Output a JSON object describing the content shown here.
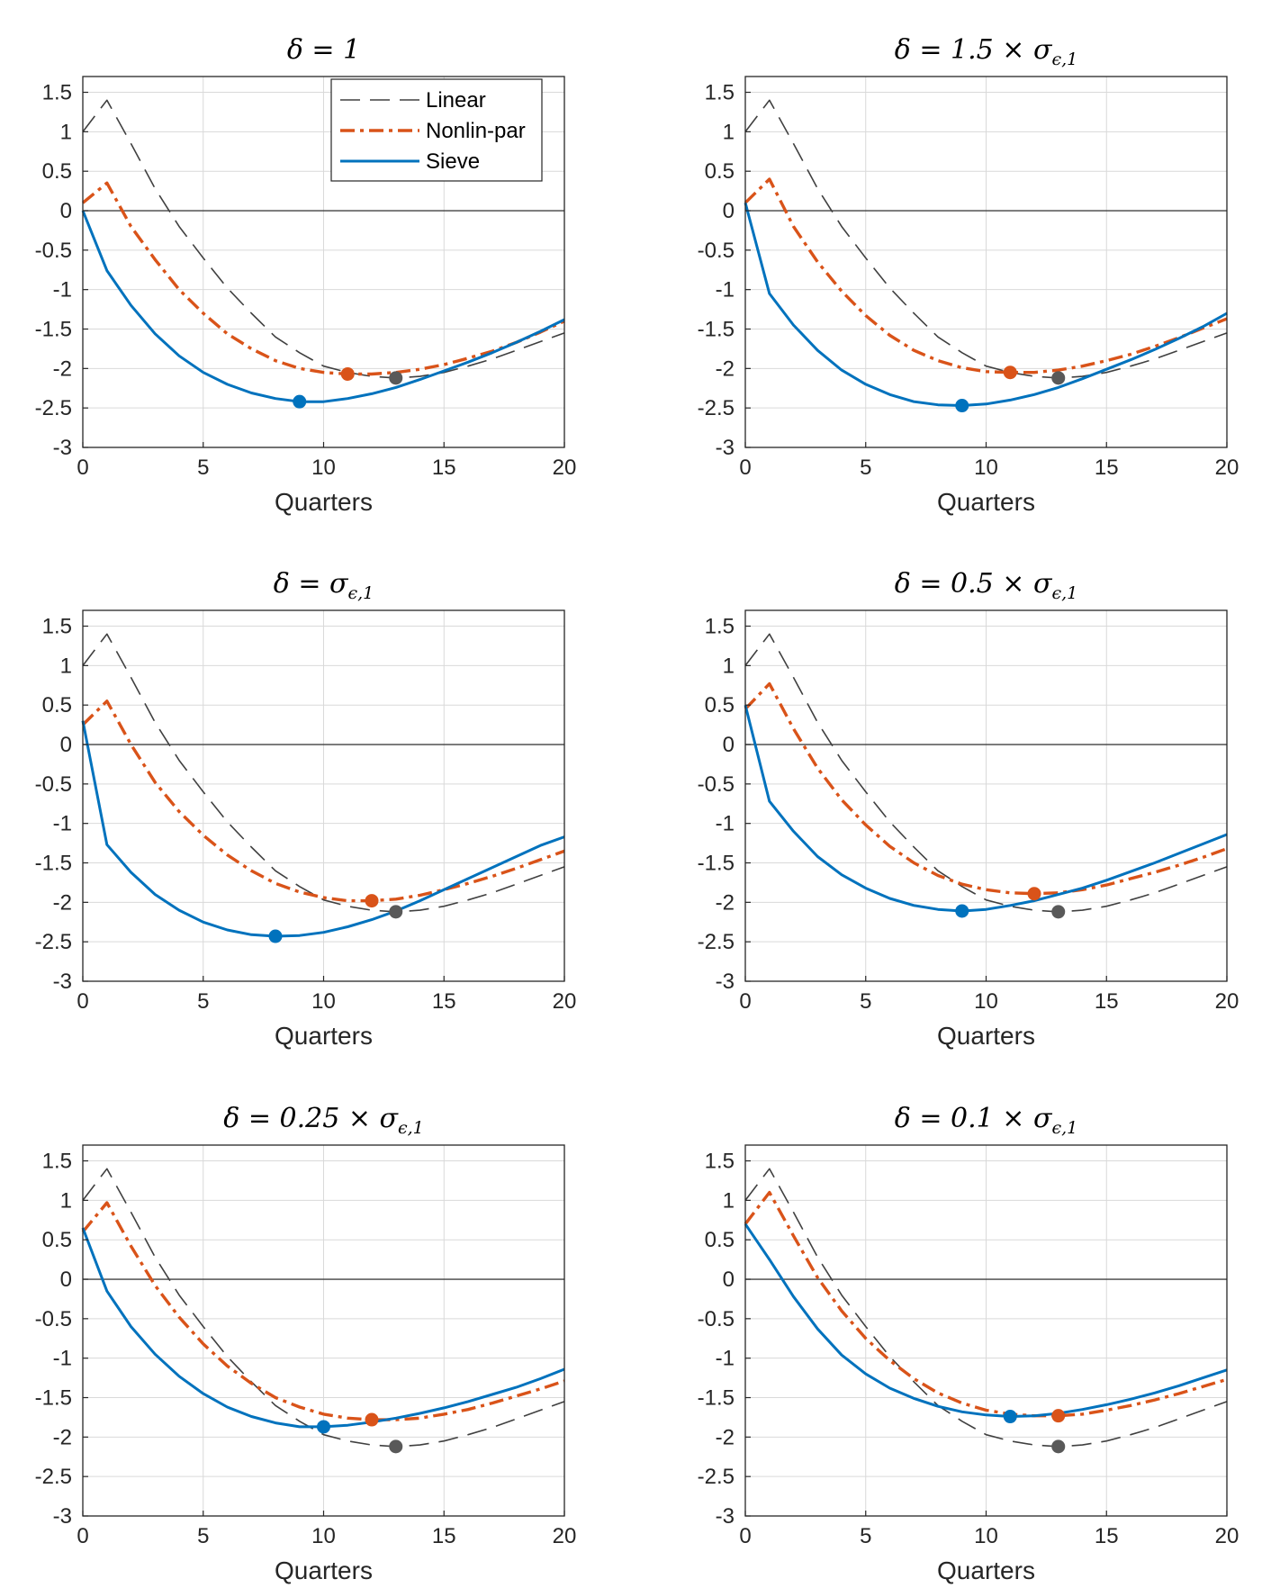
{
  "colors": {
    "linear": "#404040",
    "nonlin": "#d95319",
    "sieve": "#0072bd",
    "linear_marker": "#595959",
    "grid": "#d9d9d9",
    "axis": "#262626",
    "zero_line": "#404040"
  },
  "legend": {
    "entries": [
      "Linear",
      "Nonlin-par",
      "Sieve"
    ],
    "placement": "top-right of first panel"
  },
  "chart_data": [
    {
      "type": "line",
      "title_main": "δ = 1",
      "title_sub": "",
      "xlabel": "Quarters",
      "ylabel": "",
      "xlim": [
        0,
        20
      ],
      "ylim": [
        -3,
        1.7
      ],
      "xticks": [
        "0",
        "5",
        "10",
        "15",
        "20"
      ],
      "yticks": [
        "1.5",
        "1",
        "0.5",
        "0",
        "-0.5",
        "-1",
        "-1.5",
        "-2",
        "-2.5",
        "-3"
      ],
      "grid": true,
      "x": [
        0,
        1,
        2,
        3,
        4,
        5,
        6,
        7,
        8,
        9,
        10,
        11,
        12,
        13,
        14,
        15,
        16,
        17,
        18,
        19,
        20
      ],
      "series": [
        {
          "key": "linear",
          "values": [
            1.0,
            1.4,
            0.85,
            0.28,
            -0.2,
            -0.6,
            -0.98,
            -1.3,
            -1.6,
            -1.8,
            -1.97,
            -2.05,
            -2.1,
            -2.12,
            -2.1,
            -2.05,
            -1.97,
            -1.88,
            -1.77,
            -1.66,
            -1.55
          ],
          "marker": {
            "x": 13,
            "y": -2.12
          }
        },
        {
          "key": "nonlin",
          "values": [
            0.1,
            0.35,
            -0.2,
            -0.62,
            -1.0,
            -1.3,
            -1.56,
            -1.75,
            -1.9,
            -2.0,
            -2.05,
            -2.07,
            -2.07,
            -2.05,
            -2.01,
            -1.95,
            -1.87,
            -1.78,
            -1.67,
            -1.54,
            -1.4
          ],
          "marker": {
            "x": 11,
            "y": -2.07
          }
        },
        {
          "key": "sieve",
          "values": [
            0.0,
            -0.76,
            -1.2,
            -1.56,
            -1.84,
            -2.05,
            -2.2,
            -2.31,
            -2.38,
            -2.42,
            -2.42,
            -2.38,
            -2.32,
            -2.24,
            -2.14,
            -2.03,
            -1.92,
            -1.8,
            -1.67,
            -1.53,
            -1.38
          ],
          "marker": {
            "x": 9,
            "y": -2.42
          }
        }
      ]
    },
    {
      "type": "line",
      "title_main": "δ = 1.5 × σ",
      "title_sub": "ϵ,1",
      "xlabel": "Quarters",
      "ylabel": "",
      "xlim": [
        0,
        20
      ],
      "ylim": [
        -3,
        1.7
      ],
      "xticks": [
        "0",
        "5",
        "10",
        "15",
        "20"
      ],
      "yticks": [
        "1.5",
        "1",
        "0.5",
        "0",
        "-0.5",
        "-1",
        "-1.5",
        "-2",
        "-2.5",
        "-3"
      ],
      "grid": true,
      "x": [
        0,
        1,
        2,
        3,
        4,
        5,
        6,
        7,
        8,
        9,
        10,
        11,
        12,
        13,
        14,
        15,
        16,
        17,
        18,
        19,
        20
      ],
      "series": [
        {
          "key": "linear",
          "values": [
            1.0,
            1.4,
            0.85,
            0.28,
            -0.2,
            -0.6,
            -0.98,
            -1.3,
            -1.6,
            -1.8,
            -1.97,
            -2.05,
            -2.1,
            -2.12,
            -2.1,
            -2.05,
            -1.97,
            -1.88,
            -1.77,
            -1.66,
            -1.55
          ],
          "marker": {
            "x": 13,
            "y": -2.12
          }
        },
        {
          "key": "nonlin",
          "values": [
            0.1,
            0.4,
            -0.2,
            -0.65,
            -1.02,
            -1.33,
            -1.58,
            -1.77,
            -1.9,
            -1.99,
            -2.04,
            -2.05,
            -2.05,
            -2.02,
            -1.97,
            -1.9,
            -1.82,
            -1.72,
            -1.61,
            -1.49,
            -1.37
          ],
          "marker": {
            "x": 11,
            "y": -2.05
          }
        },
        {
          "key": "sieve",
          "values": [
            0.1,
            -1.05,
            -1.45,
            -1.77,
            -2.02,
            -2.2,
            -2.33,
            -2.42,
            -2.46,
            -2.47,
            -2.45,
            -2.4,
            -2.33,
            -2.24,
            -2.13,
            -2.01,
            -1.89,
            -1.76,
            -1.62,
            -1.47,
            -1.3
          ],
          "marker": {
            "x": 9,
            "y": -2.47
          }
        }
      ]
    },
    {
      "type": "line",
      "title_main": "δ = σ",
      "title_sub": "ϵ,1",
      "xlabel": "Quarters",
      "ylabel": "",
      "xlim": [
        0,
        20
      ],
      "ylim": [
        -3,
        1.7
      ],
      "xticks": [
        "0",
        "5",
        "10",
        "15",
        "20"
      ],
      "yticks": [
        "1.5",
        "1",
        "0.5",
        "0",
        "-0.5",
        "-1",
        "-1.5",
        "-2",
        "-2.5",
        "-3"
      ],
      "grid": true,
      "x": [
        0,
        1,
        2,
        3,
        4,
        5,
        6,
        7,
        8,
        9,
        10,
        11,
        12,
        13,
        14,
        15,
        16,
        17,
        18,
        19,
        20
      ],
      "series": [
        {
          "key": "linear",
          "values": [
            1.0,
            1.4,
            0.85,
            0.28,
            -0.2,
            -0.6,
            -0.98,
            -1.3,
            -1.6,
            -1.8,
            -1.97,
            -2.05,
            -2.1,
            -2.12,
            -2.1,
            -2.05,
            -1.97,
            -1.88,
            -1.77,
            -1.66,
            -1.55
          ],
          "marker": {
            "x": 13,
            "y": -2.12
          }
        },
        {
          "key": "nonlin",
          "values": [
            0.25,
            0.55,
            0.0,
            -0.48,
            -0.85,
            -1.15,
            -1.4,
            -1.6,
            -1.76,
            -1.87,
            -1.94,
            -1.98,
            -1.98,
            -1.96,
            -1.91,
            -1.84,
            -1.76,
            -1.67,
            -1.57,
            -1.46,
            -1.35
          ],
          "marker": {
            "x": 12,
            "y": -1.98
          }
        },
        {
          "key": "sieve",
          "values": [
            0.3,
            -1.27,
            -1.62,
            -1.9,
            -2.1,
            -2.25,
            -2.35,
            -2.41,
            -2.43,
            -2.42,
            -2.38,
            -2.31,
            -2.22,
            -2.11,
            -1.98,
            -1.84,
            -1.7,
            -1.56,
            -1.42,
            -1.28,
            -1.17
          ],
          "marker": {
            "x": 8,
            "y": -2.43
          }
        }
      ]
    },
    {
      "type": "line",
      "title_main": "δ = 0.5 × σ",
      "title_sub": "ϵ,1",
      "xlabel": "Quarters",
      "ylabel": "",
      "xlim": [
        0,
        20
      ],
      "ylim": [
        -3,
        1.7
      ],
      "xticks": [
        "0",
        "5",
        "10",
        "15",
        "20"
      ],
      "yticks": [
        "1.5",
        "1",
        "0.5",
        "0",
        "-0.5",
        "-1",
        "-1.5",
        "-2",
        "-2.5",
        "-3"
      ],
      "grid": true,
      "x": [
        0,
        1,
        2,
        3,
        4,
        5,
        6,
        7,
        8,
        9,
        10,
        11,
        12,
        13,
        14,
        15,
        16,
        17,
        18,
        19,
        20
      ],
      "series": [
        {
          "key": "linear",
          "values": [
            1.0,
            1.4,
            0.85,
            0.28,
            -0.2,
            -0.6,
            -0.98,
            -1.3,
            -1.6,
            -1.8,
            -1.97,
            -2.05,
            -2.1,
            -2.12,
            -2.1,
            -2.05,
            -1.97,
            -1.88,
            -1.77,
            -1.66,
            -1.55
          ],
          "marker": {
            "x": 13,
            "y": -2.12
          }
        },
        {
          "key": "nonlin",
          "values": [
            0.45,
            0.77,
            0.2,
            -0.3,
            -0.7,
            -1.02,
            -1.29,
            -1.5,
            -1.66,
            -1.77,
            -1.84,
            -1.88,
            -1.89,
            -1.88,
            -1.84,
            -1.78,
            -1.7,
            -1.62,
            -1.53,
            -1.43,
            -1.32
          ],
          "marker": {
            "x": 12,
            "y": -1.89
          }
        },
        {
          "key": "sieve",
          "values": [
            0.5,
            -0.72,
            -1.1,
            -1.42,
            -1.65,
            -1.82,
            -1.95,
            -2.04,
            -2.09,
            -2.11,
            -2.09,
            -2.04,
            -1.98,
            -1.9,
            -1.82,
            -1.72,
            -1.61,
            -1.5,
            -1.38,
            -1.26,
            -1.14
          ],
          "marker": {
            "x": 9,
            "y": -2.11
          }
        }
      ]
    },
    {
      "type": "line",
      "title_main": "δ = 0.25 × σ",
      "title_sub": "ϵ,1",
      "xlabel": "Quarters",
      "ylabel": "",
      "xlim": [
        0,
        20
      ],
      "ylim": [
        -3,
        1.7
      ],
      "xticks": [
        "0",
        "5",
        "10",
        "15",
        "20"
      ],
      "yticks": [
        "1.5",
        "1",
        "0.5",
        "0",
        "-0.5",
        "-1",
        "-1.5",
        "-2",
        "-2.5",
        "-3"
      ],
      "grid": true,
      "x": [
        0,
        1,
        2,
        3,
        4,
        5,
        6,
        7,
        8,
        9,
        10,
        11,
        12,
        13,
        14,
        15,
        16,
        17,
        18,
        19,
        20
      ],
      "series": [
        {
          "key": "linear",
          "values": [
            1.0,
            1.4,
            0.85,
            0.28,
            -0.2,
            -0.6,
            -0.98,
            -1.3,
            -1.6,
            -1.8,
            -1.97,
            -2.05,
            -2.1,
            -2.12,
            -2.1,
            -2.05,
            -1.97,
            -1.88,
            -1.77,
            -1.66,
            -1.55
          ],
          "marker": {
            "x": 13,
            "y": -2.12
          }
        },
        {
          "key": "nonlin",
          "values": [
            0.6,
            0.97,
            0.42,
            -0.08,
            -0.48,
            -0.82,
            -1.1,
            -1.32,
            -1.5,
            -1.62,
            -1.71,
            -1.76,
            -1.78,
            -1.78,
            -1.76,
            -1.71,
            -1.65,
            -1.57,
            -1.48,
            -1.39,
            -1.29
          ],
          "marker": {
            "x": 12,
            "y": -1.78
          }
        },
        {
          "key": "sieve",
          "values": [
            0.65,
            -0.15,
            -0.6,
            -0.95,
            -1.23,
            -1.45,
            -1.62,
            -1.74,
            -1.82,
            -1.87,
            -1.87,
            -1.85,
            -1.81,
            -1.76,
            -1.7,
            -1.63,
            -1.55,
            -1.46,
            -1.37,
            -1.26,
            -1.14
          ],
          "marker": {
            "x": 10,
            "y": -1.87
          }
        }
      ]
    },
    {
      "type": "line",
      "title_main": "δ = 0.1 × σ",
      "title_sub": "ϵ,1",
      "xlabel": "Quarters",
      "ylabel": "",
      "xlim": [
        0,
        20
      ],
      "ylim": [
        -3,
        1.7
      ],
      "xticks": [
        "0",
        "5",
        "10",
        "15",
        "20"
      ],
      "yticks": [
        "1.5",
        "1",
        "0.5",
        "0",
        "-0.5",
        "-1",
        "-1.5",
        "-2",
        "-2.5",
        "-3"
      ],
      "grid": true,
      "x": [
        0,
        1,
        2,
        3,
        4,
        5,
        6,
        7,
        8,
        9,
        10,
        11,
        12,
        13,
        14,
        15,
        16,
        17,
        18,
        19,
        20
      ],
      "series": [
        {
          "key": "linear",
          "values": [
            1.0,
            1.4,
            0.85,
            0.28,
            -0.2,
            -0.6,
            -0.98,
            -1.3,
            -1.6,
            -1.8,
            -1.97,
            -2.05,
            -2.1,
            -2.12,
            -2.1,
            -2.05,
            -1.97,
            -1.88,
            -1.77,
            -1.66,
            -1.55
          ],
          "marker": {
            "x": 13,
            "y": -2.12
          }
        },
        {
          "key": "nonlin",
          "values": [
            0.7,
            1.1,
            0.55,
            0.02,
            -0.4,
            -0.75,
            -1.03,
            -1.26,
            -1.44,
            -1.57,
            -1.66,
            -1.71,
            -1.73,
            -1.73,
            -1.71,
            -1.66,
            -1.6,
            -1.53,
            -1.45,
            -1.36,
            -1.27
          ],
          "marker": {
            "x": 13,
            "y": -1.73
          }
        },
        {
          "key": "sieve",
          "values": [
            0.7,
            0.25,
            -0.22,
            -0.63,
            -0.96,
            -1.2,
            -1.38,
            -1.51,
            -1.61,
            -1.68,
            -1.72,
            -1.74,
            -1.73,
            -1.7,
            -1.65,
            -1.59,
            -1.52,
            -1.44,
            -1.35,
            -1.25,
            -1.15
          ],
          "marker": {
            "x": 11,
            "y": -1.74
          }
        }
      ]
    }
  ]
}
